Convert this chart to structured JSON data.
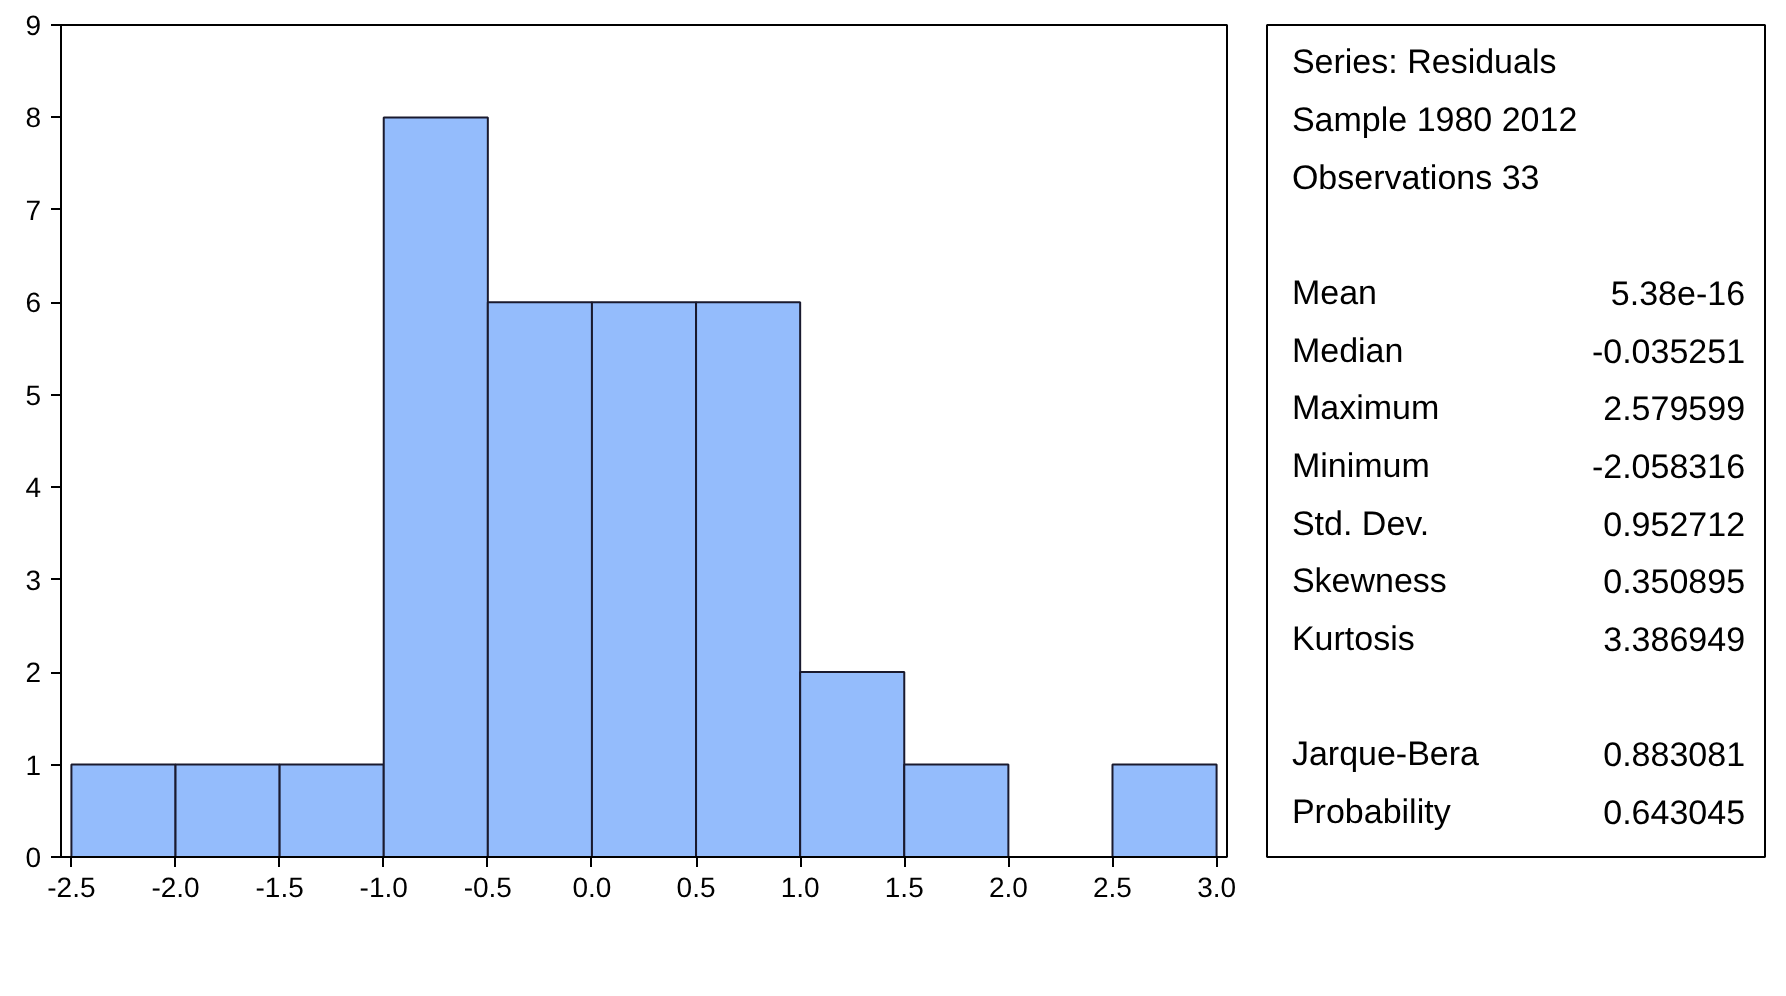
{
  "chart_data": [
    {
      "type": "histogram",
      "bins": [
        -2.5,
        -2.0,
        -1.5,
        -1.0,
        -0.5,
        0.0,
        0.5,
        1.0,
        1.5,
        2.0,
        2.5,
        3.0
      ],
      "values": [
        1,
        1,
        1,
        8,
        6,
        6,
        6,
        2,
        1,
        0,
        1
      ],
      "color": "#94bcfc",
      "xlim": [
        -2.55,
        3.05
      ],
      "xticks": [
        -2.5,
        {
          "value": -2.0,
          "label": "-2.0"
        },
        -1.5,
        {
          "value": -1.0,
          "label": "-1.0"
        },
        -0.5,
        {
          "value": 0.0,
          "label": "0.0"
        },
        0.5,
        {
          "value": 1.0,
          "label": "1.0"
        },
        1.5,
        {
          "value": 2.0,
          "label": "2.0"
        },
        2.5,
        {
          "value": 3.0,
          "label": "3.0"
        }
      ],
      "ylim": [
        0,
        9
      ],
      "yticks": [
        0,
        1,
        2,
        3,
        4,
        5,
        6,
        7,
        8,
        9
      ]
    },
    {
      "type": "other",
      "annotations": [
        "Series: Residuals",
        "Sample 1980 2012",
        "Observations 33",
        "Mean",
        "5.38e-16",
        "Median",
        "-0.035251",
        "Maximum",
        "2.579599",
        "Minimum",
        "-2.058316",
        "Std. Dev.",
        "0.952712",
        "Skewness",
        "0.350895",
        "Kurtosis",
        "3.386949",
        "Jarque-Bera",
        "0.883081",
        "Probability",
        "0.643045"
      ]
    }
  ]
}
